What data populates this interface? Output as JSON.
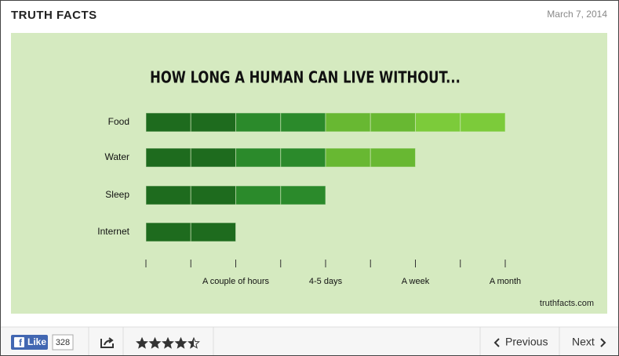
{
  "header": {
    "title": "TRUTH FACTS",
    "date": "March 7, 2014"
  },
  "chart_data": {
    "type": "bar",
    "orientation": "horizontal",
    "title": "HOW LONG A HUMAN CAN LIVE WITHOUT...",
    "categories": [
      "Food",
      "Water",
      "Sleep",
      "Internet"
    ],
    "values": [
      8,
      6,
      4,
      2
    ],
    "segment_colors": [
      "#1e6b1e",
      "#1e6b1e",
      "#2b8a2b",
      "#2b8a2b",
      "#68b832",
      "#68b832",
      "#7ccb3a",
      "#7ccb3a"
    ],
    "xlim": [
      0,
      8
    ],
    "xticks": [
      {
        "value": 2,
        "label": "A couple of hours"
      },
      {
        "value": 4,
        "label": "4-5 days"
      },
      {
        "value": 6,
        "label": "A week"
      },
      {
        "value": 8,
        "label": "A month"
      }
    ],
    "minor_xticks": [
      0,
      1,
      3,
      5,
      7
    ],
    "source": "truthfacts.com"
  },
  "footer": {
    "like": "Like",
    "like_count": 328,
    "rating": 4.5,
    "rating_max": 5,
    "previous": "Previous",
    "next": "Next"
  }
}
